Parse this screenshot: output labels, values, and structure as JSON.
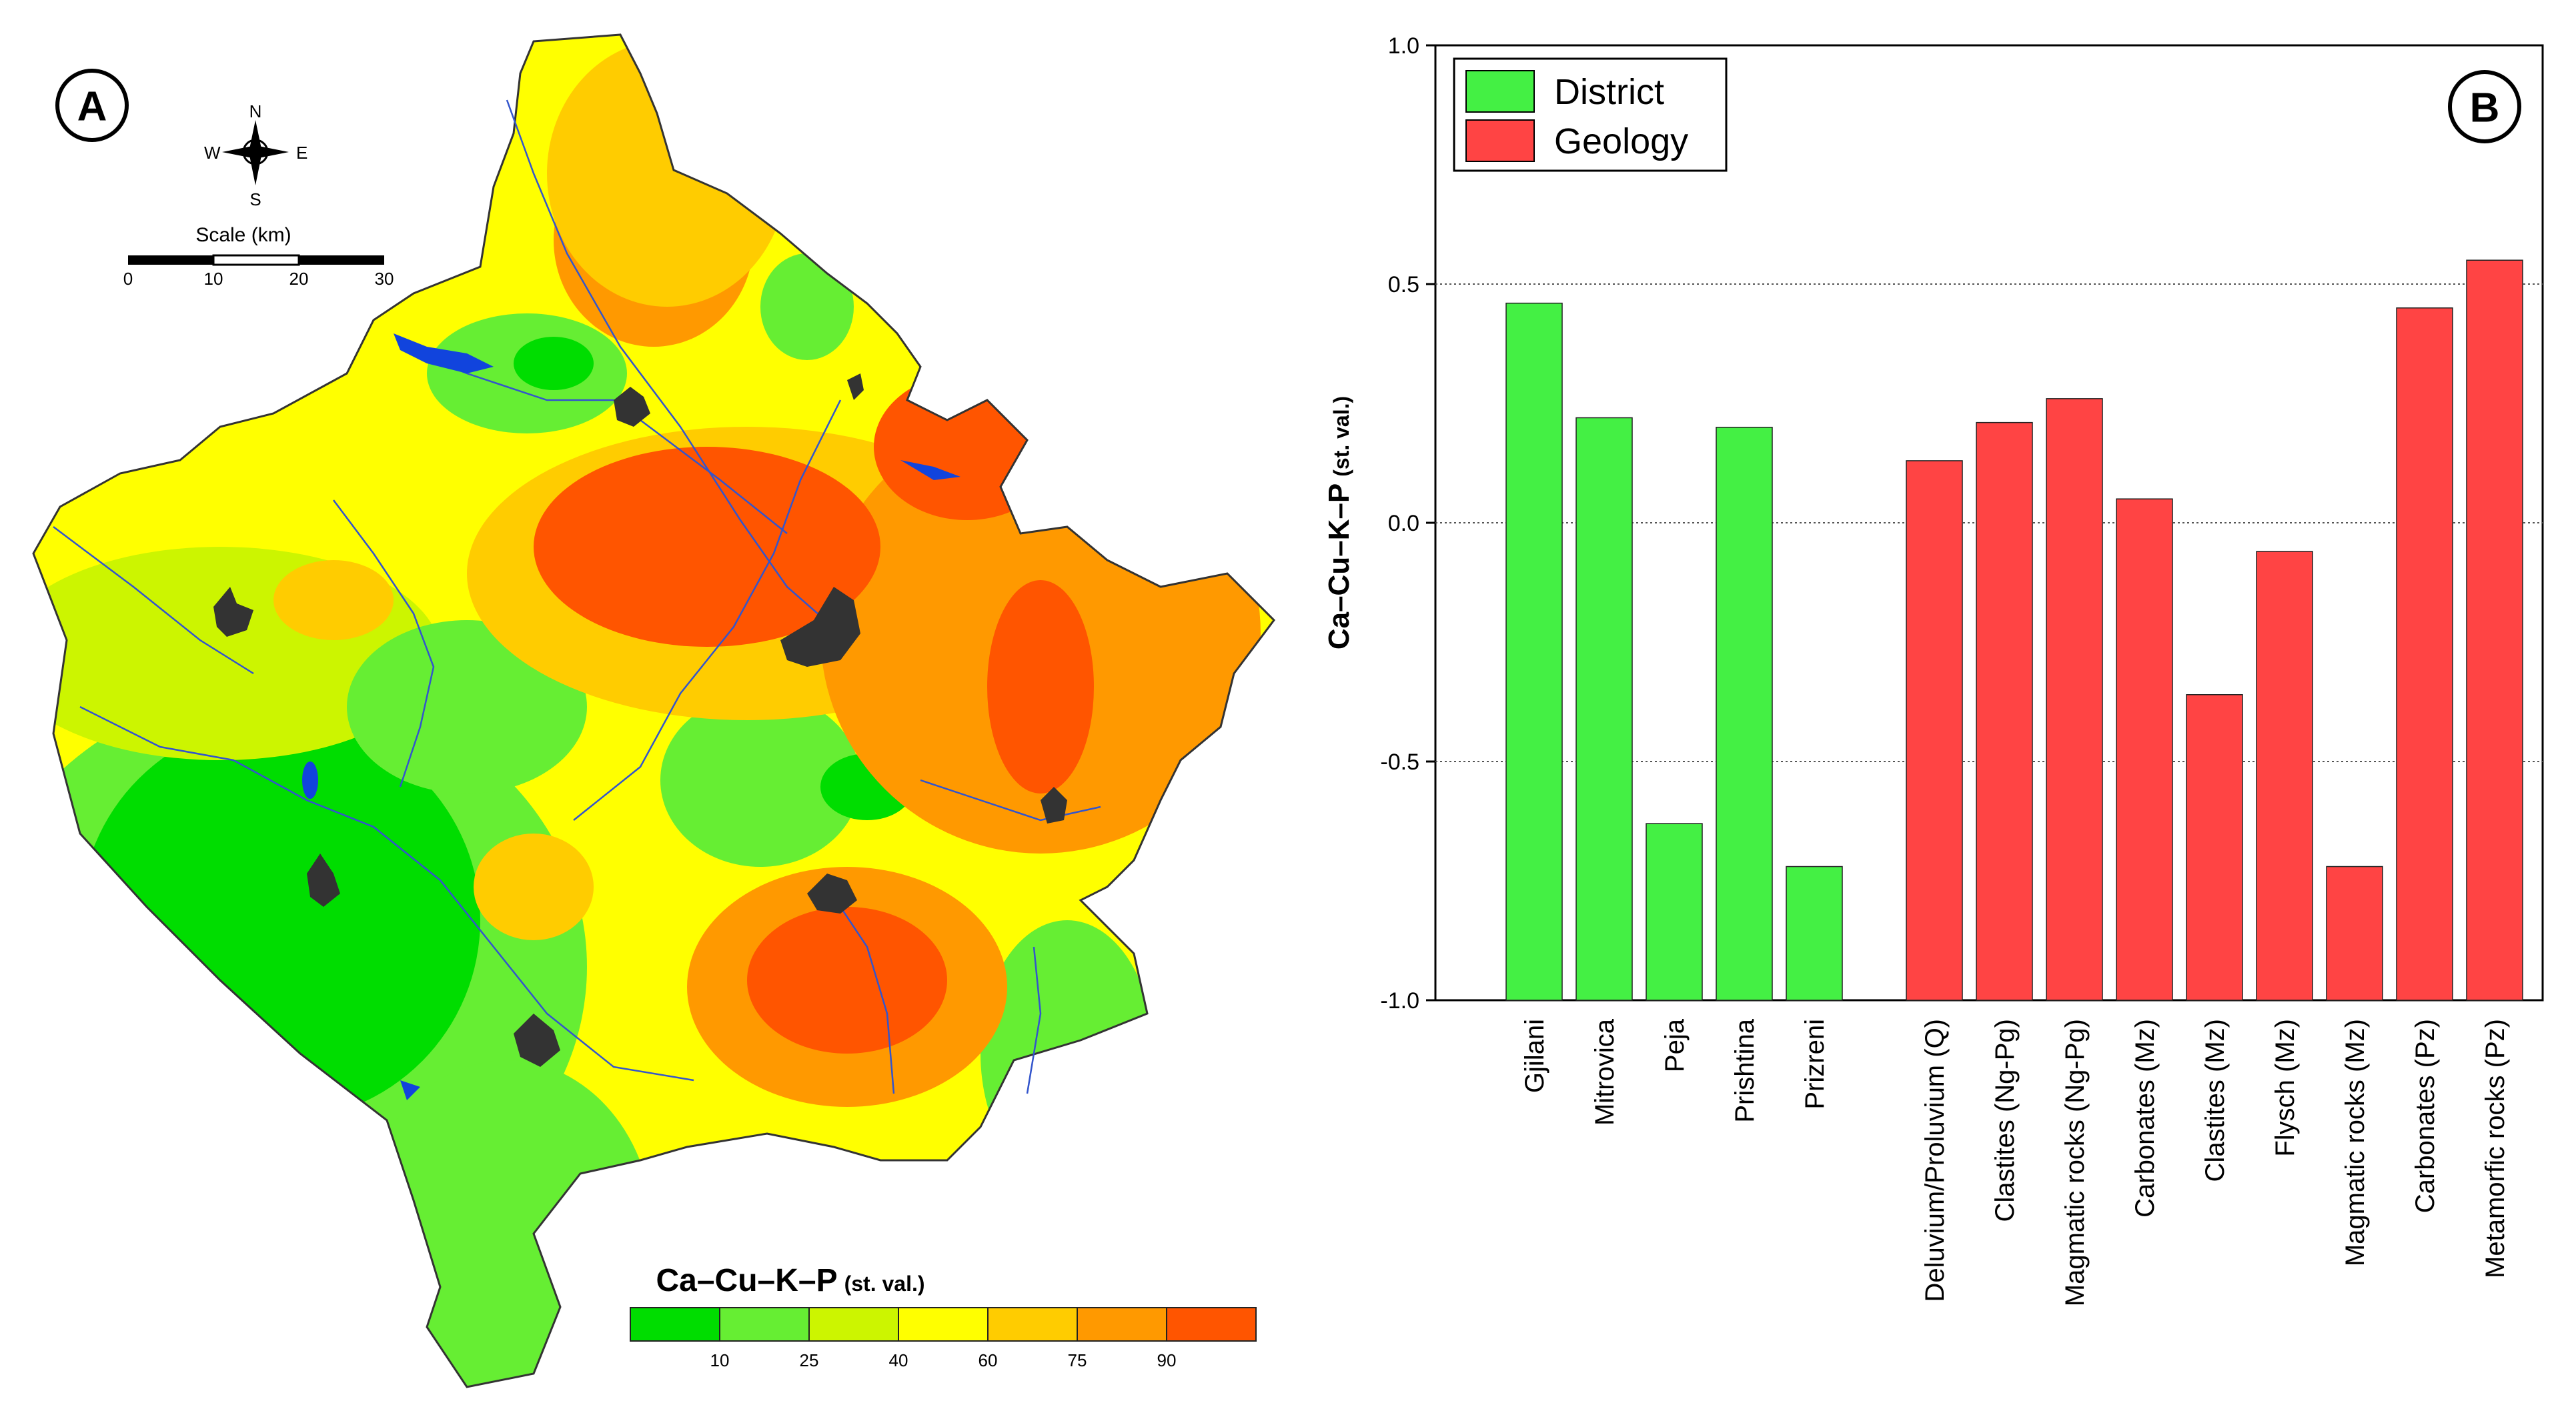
{
  "panel_a": {
    "label": "A",
    "compass": {
      "n": "N",
      "s": "S",
      "e": "E",
      "w": "W"
    },
    "scale": {
      "title": "Scale (km)",
      "ticks": [
        "0",
        "10",
        "20",
        "30"
      ]
    },
    "colorbar": {
      "title_main": "Ca–Cu–K–P",
      "title_sub": "(st. val.)",
      "colors": [
        "#00dd00",
        "#66ee33",
        "#ccf500",
        "#ffff00",
        "#ffcc00",
        "#ff9900",
        "#ff5500"
      ],
      "ticks": [
        "10",
        "25",
        "40",
        "60",
        "75",
        "90"
      ]
    }
  },
  "panel_b": {
    "label": "B",
    "legend": [
      {
        "name": "District",
        "color": "#44f044"
      },
      {
        "name": "Geology",
        "color": "#ff4444"
      }
    ]
  },
  "chart_data": {
    "type": "bar",
    "title": "",
    "xlabel": "",
    "ylabel": "Ca–Cu–K–P",
    "ylabel_sub": "(st. val.)",
    "ylim": [
      -1.0,
      1.0
    ],
    "yticks": [
      "1.0",
      "0.5",
      "0.0",
      "-0.5",
      "-1.0"
    ],
    "ytick_values": [
      1.0,
      0.5,
      0.0,
      -0.5,
      -1.0
    ],
    "gridlines": [
      0.5,
      0.0,
      -0.5
    ],
    "series": [
      {
        "name": "District",
        "color": "#44f044",
        "categories": [
          "Gjilani",
          "Mitrovica",
          "Peja",
          "Prishtina",
          "Prizreni"
        ],
        "values": [
          0.46,
          0.22,
          -0.63,
          0.2,
          -0.72
        ]
      },
      {
        "name": "Geology",
        "color": "#ff4444",
        "categories": [
          "Deluvium/Proluvium (Q)",
          "Clastites (Ng-Pg)",
          "Magmatic rocks (Ng-Pg)",
          "Carbonates (Mz)",
          "Clastites (Mz)",
          "Flysch (Mz)",
          "Magmatic rocks (Mz)",
          "Carbonates (Pz)",
          "Metamorfic rocks (Pz)"
        ],
        "values": [
          0.13,
          0.21,
          0.26,
          0.05,
          -0.36,
          -0.06,
          -0.72,
          0.45,
          0.55
        ]
      }
    ]
  }
}
